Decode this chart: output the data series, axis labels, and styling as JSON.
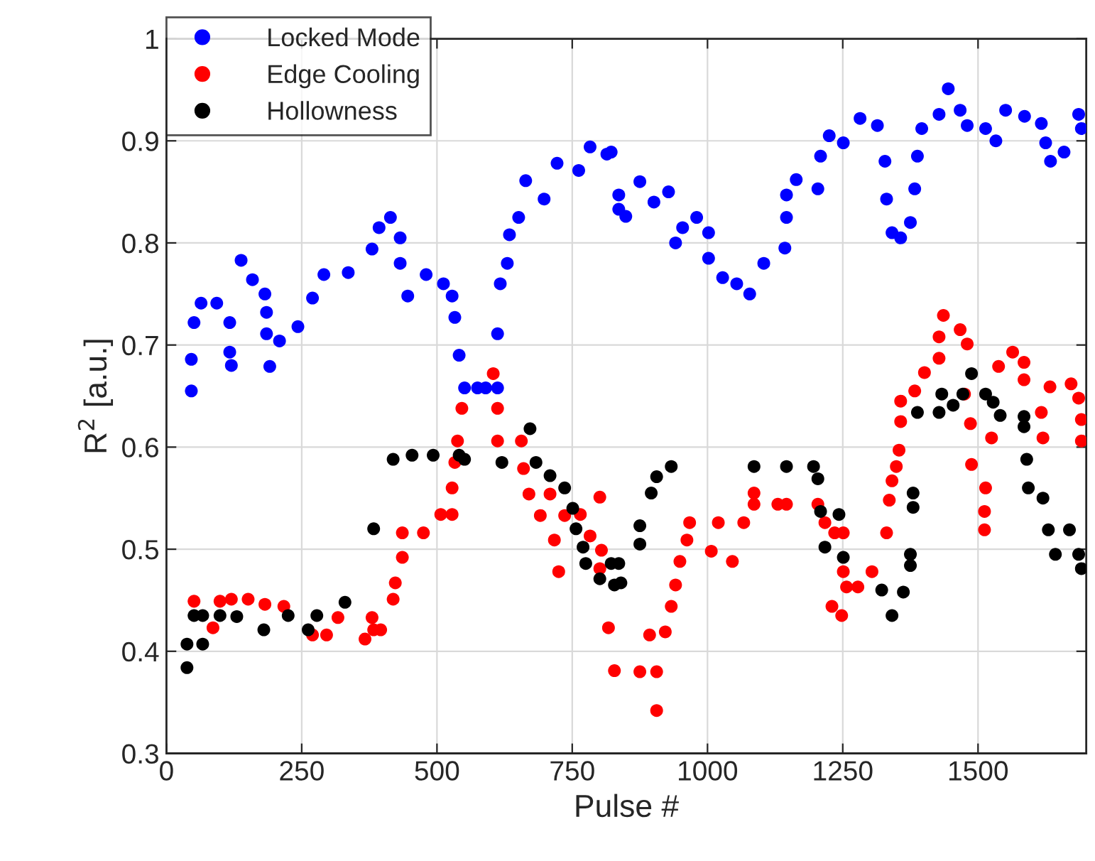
{
  "chart_data": {
    "type": "scatter",
    "xlabel": "Pulse #",
    "ylabel": "R$^{2}$ [a.u.]",
    "xlim": [
      0,
      1700
    ],
    "xticks": [
      0,
      250,
      500,
      750,
      1000,
      1250,
      1500
    ],
    "ylim": [
      0.3,
      1
    ],
    "yticks": [
      0.3,
      0.4,
      0.5,
      0.6,
      0.7,
      0.8,
      0.9,
      1
    ],
    "grid": true,
    "legend": "top left",
    "marker": "circle",
    "series": [
      {
        "name": "Locked Mode",
        "color": "#0000ff",
        "x": [
          46,
          46,
          51,
          64,
          93,
          117,
          117,
          120,
          138,
          159,
          182,
          185,
          185,
          191,
          209,
          243,
          270,
          291,
          336,
          380,
          393,
          414,
          432,
          432,
          446,
          480,
          512,
          528,
          533,
          541,
          551,
          575,
          590,
          612,
          612,
          617,
          630,
          634,
          651,
          664,
          698,
          722,
          762,
          783,
          814,
          822,
          836,
          836,
          849,
          875,
          901,
          928,
          941,
          954,
          980,
          1002,
          1002,
          1028,
          1054,
          1078,
          1104,
          1143,
          1146,
          1146,
          1164,
          1204,
          1209,
          1225,
          1251,
          1282,
          1314,
          1328,
          1331,
          1341,
          1357,
          1375,
          1383,
          1388,
          1396,
          1428,
          1445,
          1467,
          1480,
          1514,
          1533,
          1551,
          1586,
          1617,
          1625,
          1634,
          1659,
          1686,
          1691
        ],
        "values": [
          0.655,
          0.686,
          0.722,
          0.741,
          0.741,
          0.722,
          0.693,
          0.68,
          0.783,
          0.764,
          0.75,
          0.732,
          0.711,
          0.679,
          0.704,
          0.718,
          0.746,
          0.769,
          0.771,
          0.794,
          0.815,
          0.825,
          0.805,
          0.78,
          0.748,
          0.769,
          0.76,
          0.748,
          0.727,
          0.69,
          0.658,
          0.658,
          0.658,
          0.658,
          0.711,
          0.76,
          0.78,
          0.808,
          0.825,
          0.861,
          0.843,
          0.878,
          0.871,
          0.894,
          0.887,
          0.889,
          0.847,
          0.833,
          0.826,
          0.86,
          0.84,
          0.85,
          0.8,
          0.815,
          0.825,
          0.81,
          0.785,
          0.766,
          0.76,
          0.75,
          0.78,
          0.795,
          0.825,
          0.847,
          0.862,
          0.853,
          0.885,
          0.905,
          0.898,
          0.922,
          0.915,
          0.88,
          0.843,
          0.81,
          0.805,
          0.82,
          0.853,
          0.885,
          0.912,
          0.926,
          0.951,
          0.93,
          0.915,
          0.912,
          0.9,
          0.93,
          0.924,
          0.917,
          0.898,
          0.88,
          0.889,
          0.926,
          0.912
        ]
      },
      {
        "name": "Edge Cooling",
        "color": "#ff0000",
        "x": [
          51,
          86,
          99,
          120,
          151,
          182,
          217,
          270,
          296,
          317,
          367,
          380,
          383,
          396,
          419,
          423,
          436,
          436,
          475,
          507,
          528,
          528,
          533,
          538,
          546,
          604,
          612,
          612,
          656,
          660,
          670,
          691,
          709,
          717,
          725,
          736,
          765,
          783,
          801,
          801,
          804,
          817,
          828,
          875,
          893,
          906,
          906,
          922,
          933,
          941,
          949,
          962,
          967,
          1007,
          1020,
          1046,
          1067,
          1086,
          1086,
          1130,
          1146,
          1204,
          1217,
          1230,
          1235,
          1248,
          1251,
          1251,
          1257,
          1278,
          1304,
          1331,
          1336,
          1341,
          1349,
          1354,
          1357,
          1357,
          1383,
          1401,
          1428,
          1428,
          1436,
          1467,
          1475,
          1480,
          1486,
          1488,
          1512,
          1512,
          1514,
          1525,
          1538,
          1564,
          1585,
          1585,
          1617,
          1620,
          1633,
          1672,
          1686,
          1691,
          1691
        ],
        "values": [
          0.449,
          0.423,
          0.449,
          0.451,
          0.451,
          0.446,
          0.444,
          0.416,
          0.416,
          0.433,
          0.412,
          0.433,
          0.421,
          0.421,
          0.451,
          0.467,
          0.492,
          0.516,
          0.516,
          0.534,
          0.534,
          0.56,
          0.585,
          0.606,
          0.638,
          0.672,
          0.638,
          0.606,
          0.606,
          0.579,
          0.554,
          0.533,
          0.554,
          0.509,
          0.478,
          0.533,
          0.534,
          0.513,
          0.551,
          0.481,
          0.499,
          0.423,
          0.381,
          0.38,
          0.416,
          0.38,
          0.342,
          0.419,
          0.444,
          0.465,
          0.488,
          0.509,
          0.526,
          0.498,
          0.526,
          0.488,
          0.526,
          0.544,
          0.555,
          0.544,
          0.544,
          0.544,
          0.526,
          0.444,
          0.516,
          0.435,
          0.516,
          0.478,
          0.463,
          0.463,
          0.478,
          0.516,
          0.548,
          0.567,
          0.581,
          0.597,
          0.625,
          0.645,
          0.655,
          0.673,
          0.687,
          0.708,
          0.729,
          0.715,
          0.652,
          0.701,
          0.623,
          0.583,
          0.537,
          0.519,
          0.56,
          0.609,
          0.679,
          0.693,
          0.683,
          0.666,
          0.634,
          0.609,
          0.659,
          0.662,
          0.648,
          0.627,
          0.606
        ]
      },
      {
        "name": "Hollowness",
        "color": "#000000",
        "x": [
          38,
          38,
          51,
          67,
          67,
          99,
          130,
          180,
          225,
          262,
          278,
          330,
          383,
          419,
          454,
          493,
          541,
          551,
          620,
          672,
          683,
          709,
          736,
          751,
          757,
          770,
          775,
          801,
          822,
          828,
          836,
          840,
          875,
          875,
          896,
          906,
          933,
          1086,
          1146,
          1196,
          1204,
          1209,
          1217,
          1243,
          1251,
          1322,
          1341,
          1362,
          1375,
          1375,
          1380,
          1380,
          1388,
          1428,
          1433,
          1454,
          1472,
          1488,
          1514,
          1528,
          1541,
          1585,
          1585,
          1590,
          1593,
          1620,
          1630,
          1643,
          1669,
          1686,
          1691
        ],
        "values": [
          0.384,
          0.407,
          0.435,
          0.407,
          0.435,
          0.435,
          0.434,
          0.421,
          0.435,
          0.421,
          0.435,
          0.448,
          0.52,
          0.588,
          0.592,
          0.592,
          0.592,
          0.588,
          0.585,
          0.618,
          0.585,
          0.572,
          0.56,
          0.54,
          0.52,
          0.502,
          0.486,
          0.471,
          0.486,
          0.465,
          0.486,
          0.467,
          0.505,
          0.523,
          0.555,
          0.571,
          0.581,
          0.581,
          0.581,
          0.581,
          0.569,
          0.537,
          0.502,
          0.534,
          0.492,
          0.46,
          0.435,
          0.458,
          0.484,
          0.495,
          0.541,
          0.555,
          0.634,
          0.634,
          0.652,
          0.641,
          0.652,
          0.672,
          0.652,
          0.644,
          0.631,
          0.63,
          0.62,
          0.588,
          0.56,
          0.55,
          0.519,
          0.495,
          0.519,
          0.495,
          0.481
        ]
      }
    ]
  }
}
